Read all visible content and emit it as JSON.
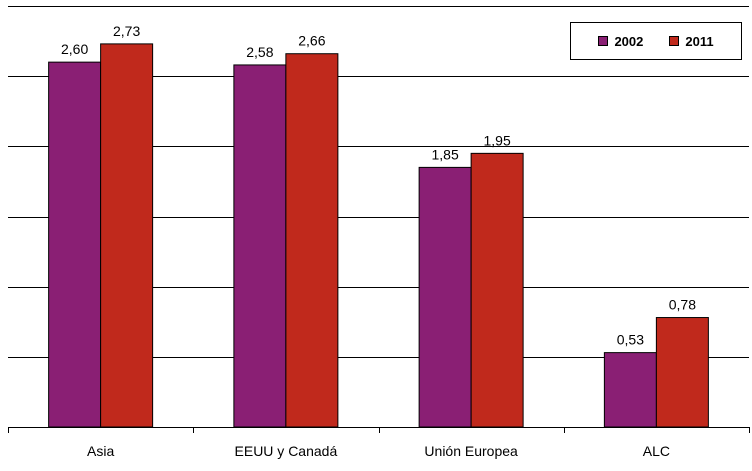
{
  "chart_data": {
    "type": "bar",
    "categories": [
      "Asia",
      "EEUU y Canadá",
      "Unión Europea",
      "ALC"
    ],
    "series": [
      {
        "name": "2002",
        "color": "#8A1F74",
        "values": [
          2.6,
          2.58,
          1.85,
          0.53
        ],
        "labels": [
          "2,60",
          "2,58",
          "1,85",
          "0,53"
        ]
      },
      {
        "name": "2011",
        "color": "#C0291C",
        "values": [
          2.73,
          2.66,
          1.95,
          0.78
        ],
        "labels": [
          "2,73",
          "2,66",
          "1,95",
          "0,78"
        ]
      }
    ],
    "ylim": [
      0,
      3
    ],
    "y_gridline_step": 0.5,
    "y_tick_labels_shown": false,
    "grid": true,
    "legend": "top-right",
    "title": "",
    "xlabel": "",
    "ylabel": ""
  }
}
